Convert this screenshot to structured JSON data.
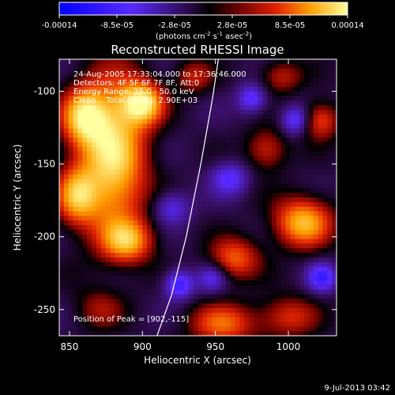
{
  "chart_data": {
    "type": "heatmap",
    "title": "Reconstructed RHESSI Image",
    "xlabel": "Heliocentric X (arcsec)",
    "ylabel": "Heliocentric Y (arcsec)",
    "xlim": [
      843,
      1033
    ],
    "ylim": [
      -268,
      -78
    ],
    "xticks": [
      850,
      900,
      950,
      1000
    ],
    "yticks": [
      -100,
      -150,
      -200,
      -250
    ],
    "colorbar": {
      "ticks": [
        "-0.00014",
        "-8.5e-05",
        "-2.8e-05",
        "2.8e-05",
        "8.5e-05",
        "0.00014"
      ],
      "unit_pre": "(photons cm",
      "unit_exp1": "-2",
      "unit_mid": " s",
      "unit_exp2": "-1",
      "unit_post": " asec",
      "unit_exp3": "-2",
      "unit_close": ")",
      "range": [
        -0.00014,
        0.00014
      ]
    },
    "annotations": [
      "24-Aug-2005 17:33:04.000 to 17:36:46.000",
      "Detectors: 4F 5F 6F 7F 8F, Att:0",
      "Energy Range: 25.0 - 50.0 keV",
      "Clean    Total counts: 2.90E+03"
    ],
    "peak_label": "Position of Peak = [902,-115]",
    "limb_curve": [
      [
        910,
        -268
      ],
      [
        920,
        -240
      ],
      [
        930,
        -200
      ],
      [
        940,
        -150
      ],
      [
        948,
        -105
      ],
      [
        952,
        -78
      ]
    ],
    "sources": [
      {
        "x": 880,
        "y": -145,
        "sx": 16,
        "sy": 38,
        "amp": 1.0
      },
      {
        "x": 900,
        "y": -108,
        "sx": 10,
        "sy": 10,
        "amp": 0.95
      },
      {
        "x": 860,
        "y": -118,
        "sx": 11,
        "sy": 14,
        "amp": 0.85
      },
      {
        "x": 890,
        "y": -203,
        "sx": 12,
        "sy": 10,
        "amp": 0.7
      },
      {
        "x": 855,
        "y": -172,
        "sx": 10,
        "sy": 14,
        "amp": 0.75
      },
      {
        "x": 1010,
        "y": -190,
        "sx": 14,
        "sy": 12,
        "amp": 0.85
      },
      {
        "x": 1022,
        "y": -120,
        "sx": 9,
        "sy": 9,
        "amp": 0.55
      },
      {
        "x": 963,
        "y": -215,
        "sx": 12,
        "sy": 10,
        "amp": 0.6
      },
      {
        "x": 985,
        "y": -140,
        "sx": 10,
        "sy": 10,
        "amp": 0.45
      },
      {
        "x": 955,
        "y": -260,
        "sx": 16,
        "sy": 10,
        "amp": 0.6
      },
      {
        "x": 1000,
        "y": -255,
        "sx": 14,
        "sy": 10,
        "amp": 0.45
      },
      {
        "x": 935,
        "y": -90,
        "sx": 9,
        "sy": 8,
        "amp": 0.4
      },
      {
        "x": 995,
        "y": -90,
        "sx": 10,
        "sy": 8,
        "amp": 0.4
      },
      {
        "x": 870,
        "y": -250,
        "sx": 12,
        "sy": 10,
        "amp": 0.3
      },
      {
        "x": 975,
        "y": -105,
        "sx": 7,
        "sy": 7,
        "amp": -0.5
      },
      {
        "x": 1005,
        "y": -120,
        "sx": 7,
        "sy": 7,
        "amp": -0.5
      },
      {
        "x": 960,
        "y": -160,
        "sx": 9,
        "sy": 8,
        "amp": -0.45
      },
      {
        "x": 920,
        "y": -180,
        "sx": 9,
        "sy": 8,
        "amp": -0.4
      },
      {
        "x": 925,
        "y": -233,
        "sx": 7,
        "sy": 7,
        "amp": -0.6
      },
      {
        "x": 1023,
        "y": -228,
        "sx": 7,
        "sy": 7,
        "amp": -0.55
      },
      {
        "x": 948,
        "y": -228,
        "sx": 7,
        "sy": 7,
        "amp": -0.4
      }
    ]
  },
  "footer": {
    "timestamp": "9-Jul-2013 03:42"
  }
}
